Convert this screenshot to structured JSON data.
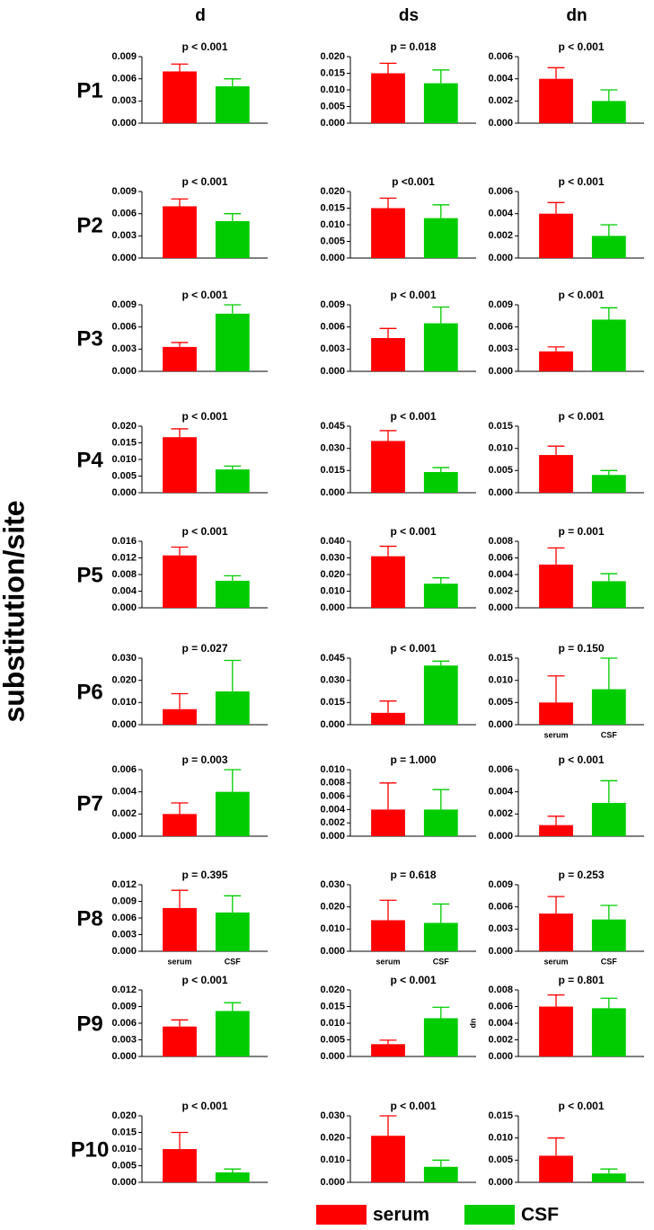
{
  "column_titles": [
    "d",
    "ds",
    "dn"
  ],
  "row_labels": [
    "P1",
    "P2",
    "P3",
    "P4",
    "P5",
    "P6",
    "P7",
    "P8",
    "P9",
    "P10"
  ],
  "y_label": "substitution/site",
  "legend": [
    {
      "name": "serum",
      "color": "#ff0000"
    },
    {
      "name": "CSF",
      "color": "#00cc00"
    }
  ],
  "chart_data": [
    {
      "type": "bar",
      "annotation": "p < 0.001",
      "values": [
        0.007,
        0.005
      ],
      "errors": [
        0.001,
        0.001
      ],
      "ylim": [
        0,
        0.009
      ],
      "yticks": [
        {
          "value": 0,
          "label": "0.000"
        },
        0.003,
        0.006,
        0.009
      ]
    },
    {
      "type": "bar",
      "annotation": "p = 0.018",
      "values": [
        0.015,
        0.012
      ],
      "errors": [
        0.003,
        0.004
      ],
      "ylim": [
        0,
        0.02
      ],
      "yticks": [
        {
          "value": 0,
          "label": "0.000"
        },
        0.005,
        {
          "value": 0.01,
          "label": "0.010"
        },
        0.015,
        {
          "value": 0.02,
          "label": "0.020"
        }
      ]
    },
    {
      "type": "bar",
      "annotation": "p < 0.001",
      "values": [
        0.004,
        0.002
      ],
      "errors": [
        0.001,
        0.001
      ],
      "ylim": [
        0,
        0.006
      ],
      "yticks": [
        {
          "value": 0,
          "label": "0.000"
        },
        0.002,
        0.004,
        0.006
      ]
    },
    {
      "type": "bar",
      "annotation": "p < 0.001",
      "values": [
        0.007,
        0.005
      ],
      "errors": [
        0.001,
        0.001
      ],
      "ylim": [
        0,
        0.009
      ],
      "yticks": [
        {
          "value": 0,
          "label": "0.000"
        },
        0.003,
        0.006,
        0.009
      ]
    },
    {
      "type": "bar",
      "annotation": "p <0.001",
      "values": [
        0.015,
        0.012
      ],
      "errors": [
        0.003,
        0.004
      ],
      "ylim": [
        0,
        0.02
      ],
      "yticks": [
        {
          "value": 0,
          "label": "0.000"
        },
        0.005,
        {
          "value": 0.01,
          "label": "0.010"
        },
        0.015,
        {
          "value": 0.02,
          "label": "0.020"
        }
      ]
    },
    {
      "type": "bar",
      "annotation": "p < 0.001",
      "values": [
        0.004,
        0.002
      ],
      "errors": [
        0.001,
        0.001
      ],
      "ylim": [
        0,
        0.006
      ],
      "yticks": [
        {
          "value": 0,
          "label": "0.000"
        },
        0.002,
        0.004,
        0.006
      ]
    },
    {
      "type": "bar",
      "annotation": "p < 0.001",
      "values": [
        0.0033,
        0.0078
      ],
      "errors": [
        0.0006,
        0.0012
      ],
      "ylim": [
        0,
        0.009
      ],
      "yticks": [
        {
          "value": 0,
          "label": "0.000"
        },
        0.003,
        0.006,
        0.009
      ]
    },
    {
      "type": "bar",
      "annotation": "p < 0.001",
      "values": [
        0.0045,
        0.0065
      ],
      "errors": [
        0.0013,
        0.0022
      ],
      "ylim": [
        0,
        0.009
      ],
      "yticks": [
        {
          "value": 0,
          "label": "0.000"
        },
        0.003,
        0.006,
        0.009
      ]
    },
    {
      "type": "bar",
      "annotation": "p < 0.001",
      "values": [
        0.0027,
        0.007
      ],
      "errors": [
        0.0006,
        0.0016
      ],
      "ylim": [
        0,
        0.009
      ],
      "yticks": [
        {
          "value": 0,
          "label": "0.000"
        },
        0.003,
        0.006,
        0.009
      ]
    },
    {
      "type": "bar",
      "annotation": "p < 0.001",
      "values": [
        0.0167,
        0.007
      ],
      "errors": [
        0.0025,
        0.001
      ],
      "ylim": [
        0,
        0.02
      ],
      "yticks": [
        {
          "value": 0,
          "label": "0.000"
        },
        0.005,
        {
          "value": 0.01,
          "label": "0.010"
        },
        0.015,
        {
          "value": 0.02,
          "label": "0.020"
        }
      ]
    },
    {
      "type": "bar",
      "annotation": "p < 0.001",
      "values": [
        0.035,
        0.014
      ],
      "errors": [
        0.007,
        0.003
      ],
      "ylim": [
        0,
        0.045
      ],
      "yticks": [
        {
          "value": 0,
          "label": "0.000"
        },
        0.015,
        {
          "value": 0.03,
          "label": "0.030"
        },
        0.045
      ]
    },
    {
      "type": "bar",
      "annotation": "p < 0.001",
      "values": [
        0.0085,
        0.004
      ],
      "errors": [
        0.002,
        0.001
      ],
      "ylim": [
        0,
        0.015
      ],
      "yticks": [
        {
          "value": 0,
          "label": "0.000"
        },
        0.005,
        {
          "value": 0.01,
          "label": "0.010"
        },
        0.015
      ]
    },
    {
      "type": "bar",
      "annotation": "p < 0.001",
      "values": [
        0.0126,
        0.0065
      ],
      "errors": [
        0.002,
        0.0012
      ],
      "ylim": [
        0,
        0.016
      ],
      "yticks": [
        {
          "value": 0,
          "label": "0.000"
        },
        0.004,
        0.008,
        0.012,
        0.016
      ]
    },
    {
      "type": "bar",
      "annotation": "p < 0.001",
      "values": [
        0.031,
        0.0145
      ],
      "errors": [
        0.006,
        0.0035
      ],
      "ylim": [
        0,
        0.04
      ],
      "yticks": [
        {
          "value": 0,
          "label": "0.000"
        },
        {
          "value": 0.01,
          "label": "0.010"
        },
        {
          "value": 0.02,
          "label": "0.020"
        },
        {
          "value": 0.03,
          "label": "0.030"
        },
        {
          "value": 0.04,
          "label": "0.040"
        }
      ]
    },
    {
      "type": "bar",
      "annotation": "p = 0.001",
      "values": [
        0.0052,
        0.0032
      ],
      "errors": [
        0.002,
        0.0009
      ],
      "ylim": [
        0,
        0.008
      ],
      "yticks": [
        {
          "value": 0,
          "label": "0.000"
        },
        0.002,
        0.004,
        0.006,
        0.008
      ]
    },
    {
      "type": "bar",
      "annotation": "p = 0.027",
      "values": [
        0.007,
        0.015
      ],
      "errors": [
        0.007,
        0.014
      ],
      "ylim": [
        0,
        0.03
      ],
      "yticks": [
        {
          "value": 0,
          "label": "0.000"
        },
        {
          "value": 0.01,
          "label": "0.010"
        },
        {
          "value": 0.02,
          "label": "0.020"
        },
        {
          "value": 0.03,
          "label": "0.030"
        }
      ]
    },
    {
      "type": "bar",
      "annotation": "p < 0.001",
      "values": [
        0.008,
        0.04
      ],
      "errors": [
        0.008,
        0.003
      ],
      "ylim": [
        0,
        0.045
      ],
      "yticks": [
        {
          "value": 0,
          "label": "0.000"
        },
        0.015,
        {
          "value": 0.03,
          "label": "0.030"
        },
        0.045
      ]
    },
    {
      "type": "bar",
      "annotation": "p = 0.150",
      "categories": [
        "serum",
        "CSF"
      ],
      "values": [
        0.005,
        0.008
      ],
      "errors": [
        0.006,
        0.007
      ],
      "ylim": [
        0,
        0.015
      ],
      "yticks": [
        {
          "value": 0,
          "label": "0.000"
        },
        0.005,
        {
          "value": 0.01,
          "label": "0.010"
        },
        0.015
      ]
    },
    {
      "type": "bar",
      "annotation": "p = 0.003",
      "values": [
        0.002,
        0.004
      ],
      "errors": [
        0.001,
        0.002
      ],
      "ylim": [
        0,
        0.006
      ],
      "yticks": [
        {
          "value": 0,
          "label": "0.000"
        },
        0.002,
        0.004,
        0.006
      ]
    },
    {
      "type": "bar",
      "annotation": "p = 1.000",
      "values": [
        0.004,
        0.004
      ],
      "errors": [
        0.004,
        0.003
      ],
      "ylim": [
        0,
        0.01
      ],
      "yticks": [
        {
          "value": 0,
          "label": "0.000"
        },
        0.002,
        0.004,
        0.006,
        0.008,
        {
          "value": 0.01,
          "label": "0.010"
        }
      ]
    },
    {
      "type": "bar",
      "annotation": "p < 0.001",
      "values": [
        0.001,
        0.003
      ],
      "errors": [
        0.0008,
        0.002
      ],
      "ylim": [
        0,
        0.006
      ],
      "yticks": [
        {
          "value": 0,
          "label": "0.000"
        },
        0.002,
        0.004,
        0.006
      ]
    },
    {
      "type": "bar",
      "annotation": "p = 0.395",
      "categories": [
        "serum",
        "CSF"
      ],
      "values": [
        0.0078,
        0.007
      ],
      "errors": [
        0.0032,
        0.003
      ],
      "ylim": [
        0,
        0.012
      ],
      "yticks": [
        {
          "value": 0,
          "label": "0.000"
        },
        0.003,
        0.006,
        0.009,
        0.012
      ]
    },
    {
      "type": "bar",
      "annotation": "p = 0.618",
      "categories": [
        "serum",
        "CSF"
      ],
      "values": [
        0.014,
        0.0128
      ],
      "errors": [
        0.009,
        0.0085
      ],
      "ylim": [
        0,
        0.03
      ],
      "yticks": [
        {
          "value": 0,
          "label": "0.000"
        },
        {
          "value": 0.01,
          "label": "0.010"
        },
        {
          "value": 0.02,
          "label": "0.020"
        },
        {
          "value": 0.03,
          "label": "0.030"
        }
      ]
    },
    {
      "type": "bar",
      "annotation": "p = 0.253",
      "categories": [
        "serum",
        "CSF"
      ],
      "values": [
        0.0051,
        0.0043
      ],
      "errors": [
        0.0023,
        0.0019
      ],
      "ylim": [
        0,
        0.009
      ],
      "yticks": [
        {
          "value": 0,
          "label": "0.000"
        },
        0.003,
        0.006,
        0.009
      ]
    },
    {
      "type": "bar",
      "annotation": "p < 0.001",
      "values": [
        0.0054,
        0.0082
      ],
      "errors": [
        0.0012,
        0.0015
      ],
      "ylim": [
        0,
        0.012
      ],
      "yticks": [
        {
          "value": 0,
          "label": "0.000"
        },
        0.003,
        0.006,
        0.009,
        0.012
      ]
    },
    {
      "type": "bar",
      "annotation": "p < 0.001",
      "values": [
        0.0037,
        0.0115
      ],
      "errors": [
        0.0012,
        0.0033
      ],
      "ylim": [
        0,
        0.02
      ],
      "yticks": [
        {
          "value": 0,
          "label": "0.000"
        },
        0.005,
        {
          "value": 0.01,
          "label": "0.010"
        },
        0.015,
        {
          "value": 0.02,
          "label": "0.020"
        }
      ]
    },
    {
      "type": "bar",
      "annotation": "p = 0.801",
      "ylabel": "dn",
      "values": [
        0.006,
        0.0058
      ],
      "errors": [
        0.0014,
        0.0012
      ],
      "ylim": [
        0,
        0.008
      ],
      "yticks": [
        {
          "value": 0,
          "label": "0.000"
        },
        0.002,
        0.004,
        0.006,
        0.008
      ]
    },
    {
      "type": "bar",
      "annotation": "p < 0.001",
      "values": [
        0.01,
        0.003
      ],
      "errors": [
        0.005,
        0.001
      ],
      "ylim": [
        0,
        0.02
      ],
      "yticks": [
        {
          "value": 0,
          "label": "0.000"
        },
        0.005,
        {
          "value": 0.01,
          "label": "0.010"
        },
        0.015,
        {
          "value": 0.02,
          "label": "0.020"
        }
      ]
    },
    {
      "type": "bar",
      "annotation": "p < 0.001",
      "values": [
        0.021,
        0.007
      ],
      "errors": [
        0.009,
        0.003
      ],
      "ylim": [
        0,
        0.03
      ],
      "yticks": [
        {
          "value": 0,
          "label": "0.000"
        },
        {
          "value": 0.01,
          "label": "0.010"
        },
        {
          "value": 0.02,
          "label": "0.020"
        },
        {
          "value": 0.03,
          "label": "0.030"
        }
      ]
    },
    {
      "type": "bar",
      "annotation": "p < 0.001",
      "values": [
        0.006,
        0.002
      ],
      "errors": [
        0.004,
        0.001
      ],
      "ylim": [
        0,
        0.015
      ],
      "yticks": [
        {
          "value": 0,
          "label": "0.000"
        },
        0.005,
        {
          "value": 0.01,
          "label": "0.010"
        },
        0.015
      ]
    }
  ]
}
